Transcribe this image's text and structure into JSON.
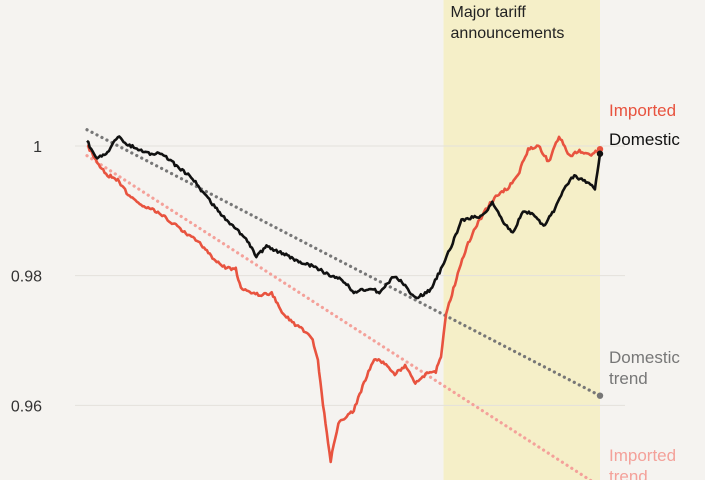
{
  "chart_data": {
    "type": "line",
    "title": "",
    "xlabel": "",
    "ylabel": "",
    "ylim": [
      0.9485,
      1.0225
    ],
    "yticks": [
      {
        "value": 1.0,
        "label": "1"
      },
      {
        "value": 0.98,
        "label": "0.98"
      },
      {
        "value": 0.96,
        "label": "0.96"
      }
    ],
    "grid": true,
    "colors": {
      "domestic": "#111111",
      "imported": "#e8533f",
      "domestic_trend": "#777777",
      "imported_trend": "#f4a19a",
      "shade": "#f5efc8",
      "grid": "#e4e1dc"
    },
    "shaded_region": {
      "label_lines": [
        "Major tariff",
        "announcements"
      ],
      "x_start": 0.695,
      "x_end": 1.0
    },
    "series": [
      {
        "name": "Domestic",
        "points": [
          [
            0,
            1.0008
          ],
          [
            0.008,
            0.9995
          ],
          [
            0.02,
            0.9982
          ],
          [
            0.04,
            0.999
          ],
          [
            0.06,
            1.0015
          ],
          [
            0.08,
            1.0002
          ],
          [
            0.1,
            0.9995
          ],
          [
            0.12,
            0.9988
          ],
          [
            0.14,
            0.9988
          ],
          [
            0.16,
            0.998
          ],
          [
            0.18,
            0.9965
          ],
          [
            0.2,
            0.9955
          ],
          [
            0.22,
            0.9935
          ],
          [
            0.23,
            0.9925
          ],
          [
            0.25,
            0.9905
          ],
          [
            0.27,
            0.9888
          ],
          [
            0.29,
            0.9872
          ],
          [
            0.31,
            0.9858
          ],
          [
            0.33,
            0.983
          ],
          [
            0.35,
            0.9845
          ],
          [
            0.38,
            0.9835
          ],
          [
            0.41,
            0.9823
          ],
          [
            0.44,
            0.9815
          ],
          [
            0.47,
            0.9802
          ],
          [
            0.5,
            0.9792
          ],
          [
            0.52,
            0.9775
          ],
          [
            0.55,
            0.978
          ],
          [
            0.57,
            0.9775
          ],
          [
            0.6,
            0.98
          ],
          [
            0.62,
            0.9785
          ],
          [
            0.64,
            0.9765
          ],
          [
            0.67,
            0.9778
          ],
          [
            0.69,
            0.981
          ],
          [
            0.71,
            0.9845
          ],
          [
            0.73,
            0.9885
          ],
          [
            0.75,
            0.989
          ],
          [
            0.77,
            0.9892
          ],
          [
            0.79,
            0.9912
          ],
          [
            0.81,
            0.9885
          ],
          [
            0.83,
            0.9865
          ],
          [
            0.85,
            0.99
          ],
          [
            0.87,
            0.9895
          ],
          [
            0.89,
            0.9875
          ],
          [
            0.91,
            0.99
          ],
          [
            0.93,
            0.9935
          ],
          [
            0.95,
            0.9955
          ],
          [
            0.97,
            0.9945
          ],
          [
            0.99,
            0.9935
          ],
          [
            1.0,
            0.9988
          ]
        ]
      },
      {
        "name": "Imported",
        "points": [
          [
            0,
            1.0
          ],
          [
            0.01,
            0.999
          ],
          [
            0.02,
            0.9975
          ],
          [
            0.04,
            0.9955
          ],
          [
            0.06,
            0.9948
          ],
          [
            0.08,
            0.9925
          ],
          [
            0.1,
            0.9912
          ],
          [
            0.13,
            0.9902
          ],
          [
            0.16,
            0.9885
          ],
          [
            0.19,
            0.9868
          ],
          [
            0.22,
            0.985
          ],
          [
            0.25,
            0.9822
          ],
          [
            0.27,
            0.9812
          ],
          [
            0.29,
            0.981
          ],
          [
            0.3,
            0.978
          ],
          [
            0.32,
            0.9775
          ],
          [
            0.34,
            0.977
          ],
          [
            0.36,
            0.9772
          ],
          [
            0.38,
            0.9745
          ],
          [
            0.4,
            0.9728
          ],
          [
            0.42,
            0.9718
          ],
          [
            0.44,
            0.9702
          ],
          [
            0.45,
            0.9668
          ],
          [
            0.46,
            0.9602
          ],
          [
            0.47,
            0.9542
          ],
          [
            0.475,
            0.9515
          ],
          [
            0.49,
            0.9572
          ],
          [
            0.52,
            0.9592
          ],
          [
            0.54,
            0.9635
          ],
          [
            0.56,
            0.9672
          ],
          [
            0.58,
            0.9665
          ],
          [
            0.6,
            0.9648
          ],
          [
            0.62,
            0.9662
          ],
          [
            0.64,
            0.9633
          ],
          [
            0.66,
            0.9648
          ],
          [
            0.68,
            0.9652
          ],
          [
            0.69,
            0.9675
          ],
          [
            0.7,
            0.9742
          ],
          [
            0.72,
            0.9795
          ],
          [
            0.74,
            0.9845
          ],
          [
            0.76,
            0.9878
          ],
          [
            0.78,
            0.9905
          ],
          [
            0.8,
            0.9925
          ],
          [
            0.82,
            0.9935
          ],
          [
            0.84,
            0.9955
          ],
          [
            0.86,
            0.9995
          ],
          [
            0.88,
            1.0
          ],
          [
            0.9,
            0.9975
          ],
          [
            0.92,
            1.0015
          ],
          [
            0.94,
            0.9985
          ],
          [
            0.96,
            0.9992
          ],
          [
            0.98,
            0.9985
          ],
          [
            1.0,
            0.9995
          ]
        ]
      },
      {
        "name": "Domestic trend",
        "points": [
          [
            0,
            1.0025
          ],
          [
            1.0,
            0.9615
          ]
        ]
      },
      {
        "name": "Imported trend",
        "points": [
          [
            0,
            0.9985
          ],
          [
            1.0,
            0.9475
          ]
        ]
      }
    ],
    "labels": {
      "imported": "Imported",
      "domestic": "Domestic",
      "domestic_trend": [
        "Domestic",
        "trend"
      ],
      "imported_trend": [
        "Imported",
        "trend"
      ]
    }
  }
}
